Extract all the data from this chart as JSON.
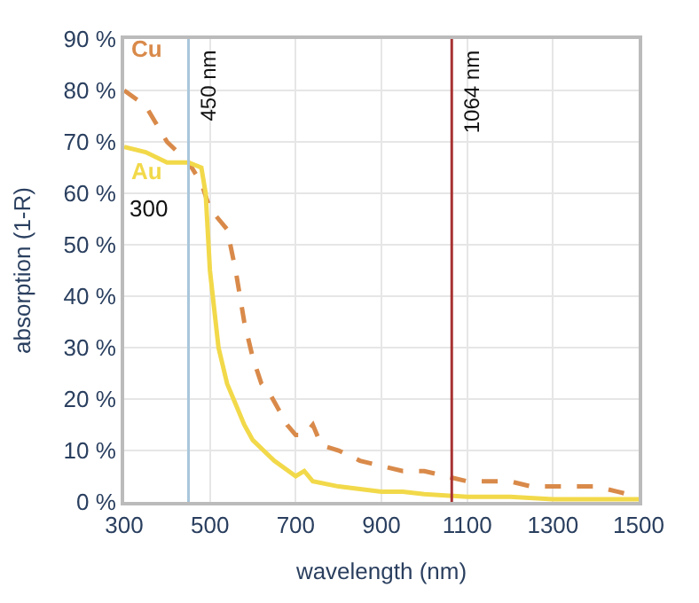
{
  "chart_data": {
    "type": "line",
    "xlabel": "wavelength (nm)",
    "ylabel": "absorption (1-R)",
    "xlim": [
      300,
      1500
    ],
    "xticks": [
      300,
      500,
      700,
      900,
      1100,
      1300,
      1500
    ],
    "ylim": [
      0,
      90
    ],
    "yticks": [
      {
        "value": 0,
        "label": "0 %"
      },
      {
        "value": 10,
        "label": "10 %"
      },
      {
        "value": 20,
        "label": "20 %"
      },
      {
        "value": 30,
        "label": "30 %"
      },
      {
        "value": 40,
        "label": "40 %"
      },
      {
        "value": 50,
        "label": "50 %"
      },
      {
        "value": 60,
        "label": "60 %"
      },
      {
        "value": 70,
        "label": "70 %"
      },
      {
        "value": 80,
        "label": "80 %"
      },
      {
        "value": 90,
        "label": "90 %"
      }
    ],
    "grid": true,
    "legend": false,
    "marker": "none",
    "series": [
      {
        "name": "Cu",
        "color": "#d98a4a",
        "line_style": "dashed",
        "x": [
          300,
          350,
          400,
          450,
          480,
          500,
          520,
          540,
          560,
          580,
          600,
          620,
          640,
          660,
          680,
          700,
          720,
          740,
          760,
          800,
          850,
          900,
          950,
          1000,
          1050,
          1100,
          1200,
          1250,
          1300,
          1400,
          1450,
          1500
        ],
        "values": [
          80,
          77,
          70,
          66,
          62,
          57,
          55,
          53,
          45,
          35,
          28,
          23,
          21,
          18,
          15,
          13,
          13,
          15,
          11,
          10,
          8,
          7,
          6,
          6,
          5,
          4,
          4,
          3,
          3,
          3,
          2,
          1
        ]
      },
      {
        "name": "Au",
        "color": "#f2d94a",
        "line_style": "solid",
        "x": [
          300,
          350,
          400,
          450,
          480,
          490,
          500,
          520,
          540,
          560,
          580,
          600,
          650,
          700,
          720,
          740,
          800,
          900,
          950,
          1000,
          1100,
          1200,
          1300,
          1500
        ],
        "values": [
          69,
          68,
          66,
          66,
          65,
          60,
          45,
          30,
          23,
          19,
          15,
          12,
          8,
          5,
          6,
          4,
          3,
          2,
          2,
          1.5,
          1,
          1,
          0.5,
          0.5
        ]
      }
    ],
    "ref_lines": [
      {
        "axis": "x",
        "value": 450,
        "label": "450 nm",
        "color": "#a9c6db"
      },
      {
        "axis": "x",
        "value": 1064,
        "label": "1064 nm",
        "color": "#a83232"
      }
    ],
    "annotations": [
      "300"
    ]
  }
}
